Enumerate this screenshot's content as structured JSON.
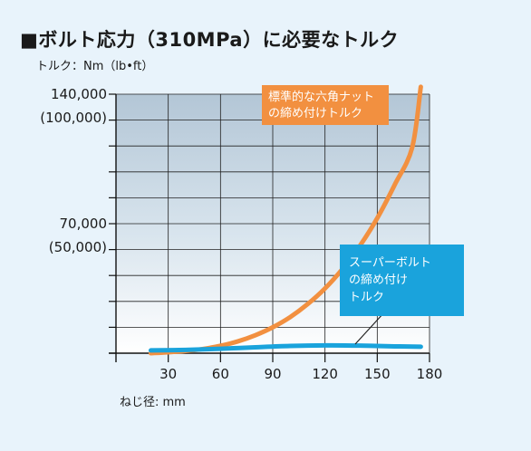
{
  "title": "■ボルト応力（310MPa）に必要なトルク",
  "unit_label": "トルク：Nm（lb•ft）",
  "colors": {
    "background": "#e8f3fb",
    "standard": "#f29040",
    "superbolt": "#1aa3dc",
    "grid": "#222222"
  },
  "chart_data": {
    "type": "line",
    "xlabel": "ねじ径: mm",
    "ylabel": "",
    "xlim": [
      0,
      180
    ],
    "ylim": [
      0,
      140000
    ],
    "x_ticks": [
      30,
      60,
      90,
      120,
      150,
      180
    ],
    "y_tick_labels": [
      {
        "value": 140000,
        "label": "140,000",
        "sub": "(100,000)"
      },
      {
        "value": 70000,
        "label": "70,000",
        "sub": "(50,000)"
      }
    ],
    "series": [
      {
        "name": "標準的な六角ナットの締め付けトルク",
        "label_lines": [
          "標準的な六角ナット",
          "の締め付けトルク"
        ],
        "color": "#f29040",
        "x": [
          20,
          30,
          40,
          50,
          60,
          70,
          80,
          90,
          100,
          110,
          120,
          130,
          140,
          150,
          160,
          170,
          175
        ],
        "y": [
          0,
          500,
          1200,
          2300,
          4000,
          6400,
          9700,
          14000,
          19500,
          26500,
          35000,
          45500,
          58000,
          73000,
          91000,
          111000,
          144000
        ]
      },
      {
        "name": "スーパーボルトの締め付けトルク",
        "label_lines": [
          "スーパーボルト",
          "の締め付け",
          "トルク"
        ],
        "color": "#1aa3dc",
        "x": [
          20,
          40,
          60,
          80,
          100,
          120,
          140,
          160,
          175
        ],
        "y": [
          1500,
          1800,
          2400,
          3200,
          3900,
          4200,
          4100,
          3700,
          3500
        ]
      }
    ]
  }
}
